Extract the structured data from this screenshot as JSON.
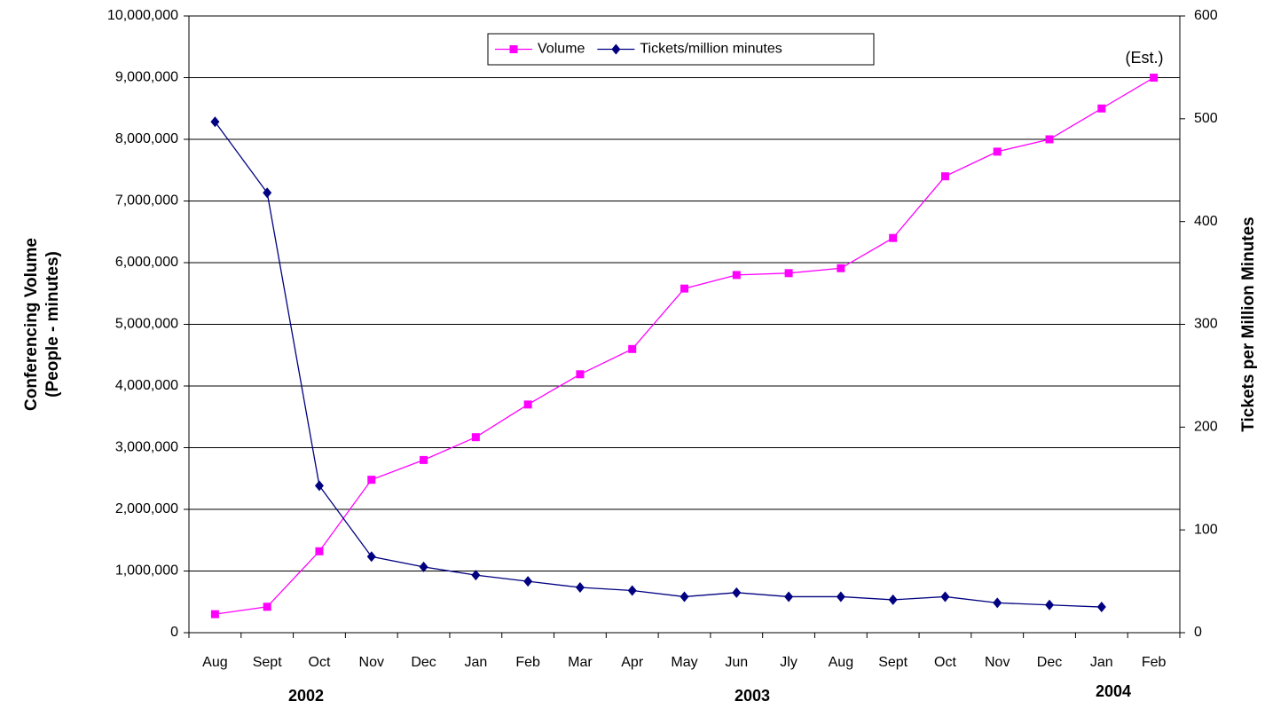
{
  "chart_data": {
    "type": "line",
    "y_label": [
      "Conferencing Volume",
      "(People - minutes)"
    ],
    "y2_label": "Tickets per Million Minutes",
    "categories": [
      "Aug",
      "Sept",
      "Oct",
      "Nov",
      "Dec",
      "Jan",
      "Feb",
      "Mar",
      "Apr",
      "May",
      "Jun",
      "Jly",
      "Aug",
      "Sept",
      "Oct",
      "Nov",
      "Dec",
      "Jan",
      "Feb"
    ],
    "series": [
      {
        "name": "Volume",
        "color": "#ff00ff",
        "marker": "square",
        "values": [
          300000,
          420000,
          1320000,
          2480000,
          2800000,
          3170000,
          3700000,
          4190000,
          4600000,
          5580000,
          5800000,
          5830000,
          5910000,
          6400000,
          7400000,
          7800000,
          8000000,
          8500000,
          9000000
        ]
      },
      {
        "name": "Tickets/million minutes",
        "color": "#000080",
        "marker": "diamond",
        "axis": "y2",
        "values": [
          497,
          428,
          143,
          74,
          64,
          56,
          50,
          44,
          41,
          35,
          39,
          35,
          35,
          32,
          35,
          29,
          27,
          25,
          null
        ]
      }
    ],
    "ylim": [
      0,
      10000000
    ],
    "yticks": [
      0,
      {
        "value": 1000000,
        "label": "1,000,000"
      },
      {
        "value": 2000000,
        "label": "2,000,000"
      },
      {
        "value": 3000000,
        "label": "3,000,000"
      },
      {
        "value": 4000000,
        "label": "4,000,000"
      },
      {
        "value": 5000000,
        "label": "5,000,000"
      },
      {
        "value": 6000000,
        "label": "6,000,000"
      },
      {
        "value": 7000000,
        "label": "7,000,000"
      },
      {
        "value": 8000000,
        "label": "8,000,000"
      },
      {
        "value": 9000000,
        "label": "9,000,000"
      },
      {
        "value": 10000000,
        "label": "10,000,000"
      }
    ],
    "y2lim": [
      0,
      600
    ],
    "y2ticks": [
      0,
      100,
      200,
      300,
      400,
      500,
      600
    ],
    "grid": true,
    "legend": "upper center",
    "annotations": [
      "(Est.)"
    ],
    "year_labels": [
      "2002",
      "2003",
      "2004"
    ]
  }
}
